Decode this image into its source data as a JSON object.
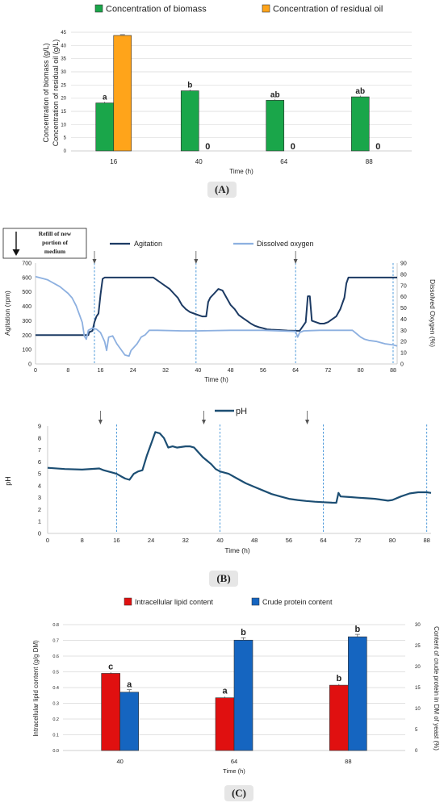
{
  "charts": {
    "A": {
      "panel_label": "(A)",
      "chart_data": {
        "type": "bar",
        "categories": [
          "16",
          "40",
          "64",
          "88"
        ],
        "series": [
          {
            "name": "Concentration of biomass",
            "color": "#1aa64a",
            "values": [
              18.2,
              22.8,
              19.2,
              20.5
            ],
            "letters": [
              "a",
              "b",
              "ab",
              "ab"
            ]
          },
          {
            "name": "Concentration of residual oil",
            "color": "#ffa41a",
            "values": [
              43.8,
              0,
              0,
              0
            ],
            "zero_labels": [
              "",
              "0",
              "0",
              "0"
            ]
          }
        ],
        "xlabel": "Time (h)",
        "ylabel_lines": [
          "Concentration of biomass (g/L)",
          "Concentration of residual oil (g/L)"
        ],
        "ylim": [
          0,
          45
        ],
        "yticks": [
          "0",
          "5",
          "10",
          "15",
          "20",
          "25",
          "30",
          "35",
          "40",
          "45"
        ],
        "grid": true,
        "legend_position": "top"
      }
    },
    "B1": {
      "annotation": {
        "lines": [
          "Refill of new",
          "portion of",
          "medium"
        ]
      },
      "chart_data": {
        "type": "line",
        "xlabel": "Time (h)",
        "ylabel": "Agitation (rpm)",
        "y2label": "Dissolved Oxygen (%)",
        "xlim": [
          0,
          89
        ],
        "ylim": [
          0,
          700
        ],
        "y2lim": [
          0,
          90
        ],
        "xticks": [
          "0",
          "8",
          "16",
          "24",
          "32",
          "40",
          "48",
          "56",
          "64",
          "72",
          "80",
          "88"
        ],
        "yticks": [
          "0",
          "100",
          "200",
          "300",
          "400",
          "500",
          "600",
          "700"
        ],
        "y2ticks": [
          "0",
          "10",
          "20",
          "30",
          "40",
          "50",
          "60",
          "70",
          "80",
          "90"
        ],
        "refill_times": [
          14.5,
          39.5,
          64,
          88
        ],
        "series": [
          {
            "name": "Agitation",
            "axis": "left",
            "color": "#1c3a63",
            "points": [
              [
                0,
                200
              ],
              [
                13,
                200
              ],
              [
                13.2,
                220
              ],
              [
                14,
                230
              ],
              [
                14.5,
                290
              ],
              [
                15,
                330
              ],
              [
                15.5,
                350
              ],
              [
                16,
                480
              ],
              [
                16.5,
                590
              ],
              [
                17,
                600
              ],
              [
                29,
                600
              ],
              [
                30,
                580
              ],
              [
                31,
                560
              ],
              [
                32,
                540
              ],
              [
                33,
                520
              ],
              [
                34,
                490
              ],
              [
                35,
                460
              ],
              [
                36,
                410
              ],
              [
                37,
                380
              ],
              [
                38,
                360
              ],
              [
                39,
                350
              ],
              [
                40,
                340
              ],
              [
                41,
                330
              ],
              [
                42,
                330
              ],
              [
                42.5,
                430
              ],
              [
                43,
                460
              ],
              [
                44,
                490
              ],
              [
                45,
                520
              ],
              [
                46,
                510
              ],
              [
                47,
                460
              ],
              [
                48,
                410
              ],
              [
                49,
                380
              ],
              [
                50,
                340
              ],
              [
                51,
                320
              ],
              [
                52,
                300
              ],
              [
                53,
                280
              ],
              [
                54,
                265
              ],
              [
                55,
                255
              ],
              [
                56,
                248
              ],
              [
                57,
                240
              ],
              [
                58,
                238
              ],
              [
                60,
                235
              ],
              [
                62,
                232
              ],
              [
                64,
                230
              ],
              [
                65,
                230
              ],
              [
                66,
                270
              ],
              [
                66.5,
                290
              ],
              [
                67,
                470
              ],
              [
                67.5,
                470
              ],
              [
                68,
                300
              ],
              [
                69,
                290
              ],
              [
                70,
                280
              ],
              [
                71,
                280
              ],
              [
                72,
                290
              ],
              [
                73,
                310
              ],
              [
                74,
                330
              ],
              [
                75,
                380
              ],
              [
                76,
                460
              ],
              [
                76.5,
                560
              ],
              [
                77,
                600
              ],
              [
                89,
                600
              ]
            ]
          },
          {
            "name": "Dissolved oxygen",
            "axis": "right",
            "color": "#8db0e0",
            "points": [
              [
                0,
                78
              ],
              [
                2,
                76
              ],
              [
                3,
                75
              ],
              [
                4,
                73
              ],
              [
                5,
                71
              ],
              [
                6,
                69
              ],
              [
                7,
                66
              ],
              [
                8,
                63
              ],
              [
                9,
                59
              ],
              [
                10,
                52
              ],
              [
                11,
                42
              ],
              [
                11.5,
                37
              ],
              [
                12,
                25
              ],
              [
                12.5,
                22
              ],
              [
                13,
                30
              ],
              [
                14,
                32
              ],
              [
                15,
                31
              ],
              [
                16,
                28
              ],
              [
                17,
                20
              ],
              [
                17.5,
                12
              ],
              [
                18,
                24
              ],
              [
                19,
                25
              ],
              [
                20,
                18
              ],
              [
                21,
                13
              ],
              [
                22,
                8
              ],
              [
                23,
                7
              ],
              [
                23.5,
                12
              ],
              [
                24,
                14
              ],
              [
                25,
                18
              ],
              [
                26,
                24
              ],
              [
                27,
                26
              ],
              [
                28,
                30
              ],
              [
                30,
                30
              ],
              [
                36,
                29.5
              ],
              [
                40,
                29.5
              ],
              [
                48,
                30
              ],
              [
                56,
                30
              ],
              [
                64,
                29
              ],
              [
                64.5,
                24
              ],
              [
                65,
                28
              ],
              [
                66,
                29.5
              ],
              [
                70,
                30
              ],
              [
                76,
                30
              ],
              [
                78,
                30
              ],
              [
                79,
                27
              ],
              [
                80,
                24
              ],
              [
                81,
                22
              ],
              [
                82,
                21
              ],
              [
                84,
                20
              ],
              [
                86,
                18
              ],
              [
                88,
                17
              ],
              [
                89,
                16
              ]
            ]
          }
        ]
      }
    },
    "B2": {
      "panel_label": "(B)",
      "chart_data": {
        "type": "line",
        "xlabel": "Time (h)",
        "ylabel": "pH",
        "xlim": [
          0,
          89
        ],
        "ylim": [
          0,
          9
        ],
        "xticks": [
          "0",
          "8",
          "16",
          "24",
          "32",
          "40",
          "48",
          "56",
          "64",
          "72",
          "80",
          "88"
        ],
        "yticks": [
          "0",
          "1",
          "2",
          "3",
          "4",
          "5",
          "6",
          "7",
          "8",
          "9"
        ],
        "refill_times": [
          16,
          40,
          64,
          88
        ],
        "series": [
          {
            "name": "pH",
            "color": "#1c4e73",
            "points": [
              [
                0,
                5.5
              ],
              [
                4,
                5.4
              ],
              [
                8,
                5.35
              ],
              [
                12,
                5.45
              ],
              [
                13,
                5.3
              ],
              [
                15,
                5.1
              ],
              [
                16,
                5
              ],
              [
                17,
                4.8
              ],
              [
                18,
                4.6
              ],
              [
                19,
                4.5
              ],
              [
                20,
                5
              ],
              [
                21,
                5.2
              ],
              [
                22,
                5.3
              ],
              [
                23,
                6.5
              ],
              [
                24,
                7.5
              ],
              [
                25,
                8.5
              ],
              [
                26,
                8.4
              ],
              [
                27,
                8
              ],
              [
                28,
                7.2
              ],
              [
                29,
                7.3
              ],
              [
                30,
                7.2
              ],
              [
                32,
                7.3
              ],
              [
                33,
                7.3
              ],
              [
                34,
                7.2
              ],
              [
                35,
                6.8
              ],
              [
                36,
                6.4
              ],
              [
                37,
                6.1
              ],
              [
                38,
                5.8
              ],
              [
                39,
                5.4
              ],
              [
                40,
                5.2
              ],
              [
                42,
                5
              ],
              [
                44,
                4.6
              ],
              [
                46,
                4.2
              ],
              [
                48,
                3.9
              ],
              [
                50,
                3.6
              ],
              [
                52,
                3.3
              ],
              [
                54,
                3.1
              ],
              [
                56,
                2.9
              ],
              [
                58,
                2.8
              ],
              [
                60,
                2.72
              ],
              [
                62,
                2.66
              ],
              [
                64,
                2.62
              ],
              [
                66,
                2.58
              ],
              [
                67,
                2.57
              ],
              [
                67.5,
                3.4
              ],
              [
                68,
                3.1
              ],
              [
                70,
                3.05
              ],
              [
                72,
                3
              ],
              [
                74,
                2.95
              ],
              [
                76,
                2.9
              ],
              [
                78,
                2.8
              ],
              [
                79,
                2.75
              ],
              [
                80,
                2.8
              ],
              [
                82,
                3.1
              ],
              [
                84,
                3.35
              ],
              [
                86,
                3.45
              ],
              [
                88,
                3.45
              ],
              [
                89,
                3.4
              ]
            ]
          }
        ]
      }
    },
    "C": {
      "panel_label": "(C)",
      "chart_data": {
        "type": "bar",
        "categories": [
          "40",
          "64",
          "88"
        ],
        "series": [
          {
            "name": "Intracellular lipid content",
            "axis": "left",
            "color": "#e01010",
            "values": [
              0.49,
              0.335,
              0.415
            ],
            "letters": [
              "c",
              "a",
              "b"
            ]
          },
          {
            "name": "Crude protein content",
            "axis": "right",
            "color": "#1565c0",
            "values": [
              13.9,
              26.3,
              27.1
            ],
            "letters": [
              "a",
              "b",
              "b"
            ]
          }
        ],
        "xlabel": "Time (h)",
        "ylabel": "Intracellular lipid content (g/g DM)",
        "y2label": "Content of crude protein in DM of yeast (%)",
        "ylim": [
          0,
          0.8
        ],
        "y2lim": [
          0,
          30
        ],
        "yticks": [
          "0.0",
          "0.1",
          "0.2",
          "0.3",
          "0.4",
          "0.5",
          "0.6",
          "0.7",
          "0.8"
        ],
        "y2ticks": [
          "0",
          "5",
          "10",
          "15",
          "20",
          "25",
          "30"
        ],
        "grid": true,
        "legend_position": "top"
      }
    }
  },
  "colors": {
    "axis": "#bfbfbf",
    "grid": "#d9d9d9",
    "refill_line": "#3a8fd6",
    "arrow": "#555555"
  }
}
